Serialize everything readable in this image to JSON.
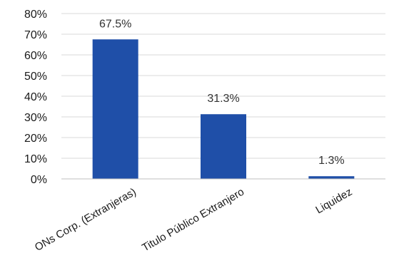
{
  "chart_data": {
    "type": "bar",
    "title": "",
    "xlabel": "",
    "ylabel": "",
    "categories": [
      "ONs Corp. (Extranjeras)",
      "Titulo Público Extranjero",
      "Liquidez"
    ],
    "values": [
      67.5,
      31.3,
      1.3
    ],
    "data_labels": [
      "67.5%",
      "31.3%",
      "1.3%"
    ],
    "ylim": [
      0,
      80
    ],
    "yticks": [
      0,
      10,
      20,
      30,
      40,
      50,
      60,
      70,
      80
    ],
    "ytick_labels": [
      "0%",
      "10%",
      "20%",
      "30%",
      "40%",
      "50%",
      "60%",
      "70%",
      "80%"
    ],
    "grid": true,
    "legend": "none",
    "bar_color": "#1f4fa8"
  }
}
